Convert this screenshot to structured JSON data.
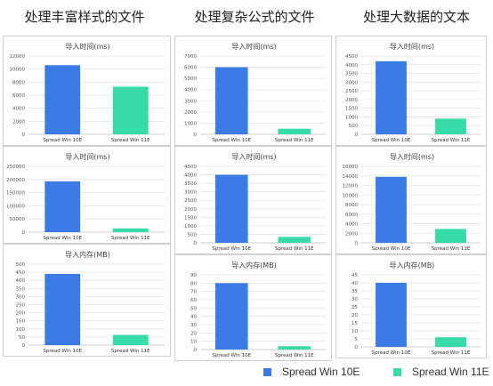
{
  "column_titles": [
    "处理丰富样式的文件",
    "处理复杂公式的文件",
    "处理大数据的文本"
  ],
  "legend": {
    "items": [
      {
        "label": "Spread Win 10E",
        "color": "#3b7be6"
      },
      {
        "label": "Spread Win 11E",
        "color": "#36dba8"
      }
    ]
  },
  "chart_data": [
    {
      "type": "bar",
      "title": "导入时间(ms)",
      "categories": [
        "Spread Win 10E",
        "Spread Win 11E"
      ],
      "values": [
        10600,
        7300
      ],
      "ylim": [
        0,
        12000
      ],
      "ticks": [
        0,
        2000,
        4000,
        6000,
        8000,
        10000,
        12000
      ],
      "grid": true,
      "group": "处理丰富样式的文件"
    },
    {
      "type": "bar",
      "title": "导入时间(ms)",
      "categories": [
        "Spread Win 10E",
        "Spread Win 11E"
      ],
      "values": [
        193000,
        14000
      ],
      "ylim": [
        0,
        250000
      ],
      "ticks": [
        0,
        50000,
        100000,
        150000,
        200000,
        250000
      ],
      "grid": true,
      "group": "处理丰富样式的文件"
    },
    {
      "type": "bar",
      "title": "导入内存(MB)",
      "categories": [
        "Spread Win 10E",
        "Spread Win 11E"
      ],
      "values": [
        440,
        63
      ],
      "ylim": [
        0,
        500
      ],
      "ticks": [
        0,
        50,
        100,
        150,
        200,
        250,
        300,
        350,
        400,
        450,
        500
      ],
      "grid": true,
      "group": "处理丰富样式的文件"
    },
    {
      "type": "bar",
      "title": "导入时间(ms)",
      "categories": [
        "Spread Win 10E",
        "Spread Win 11E"
      ],
      "values": [
        6000,
        500
      ],
      "ylim": [
        0,
        7000
      ],
      "ticks": [
        0,
        1000,
        2000,
        3000,
        4000,
        5000,
        6000,
        7000
      ],
      "grid": true,
      "group": "处理复杂公式的文件"
    },
    {
      "type": "bar",
      "title": "导入时间(ms)",
      "categories": [
        "Spread Win 10E",
        "Spread Win 11E"
      ],
      "values": [
        4000,
        350
      ],
      "ylim": [
        0,
        4500
      ],
      "ticks": [
        0,
        500,
        1000,
        1500,
        2000,
        2500,
        3000,
        3500,
        4000,
        4500
      ],
      "grid": true,
      "group": "处理复杂公式的文件"
    },
    {
      "type": "bar",
      "title": "导入内存(MB)",
      "categories": [
        "Spread Win 10E",
        "Spread Win 11E"
      ],
      "values": [
        80,
        4
      ],
      "ylim": [
        0,
        90
      ],
      "ticks": [
        0,
        10,
        20,
        30,
        40,
        50,
        60,
        70,
        80,
        90
      ],
      "grid": true,
      "group": "处理复杂公式的文件"
    },
    {
      "type": "bar",
      "title": "导入时间(ms)",
      "categories": [
        "Spread Win 10E",
        "Spread Win 11E"
      ],
      "values": [
        4200,
        900
      ],
      "ylim": [
        0,
        4500
      ],
      "ticks": [
        0,
        500,
        1000,
        1500,
        2000,
        2500,
        3000,
        3500,
        4000,
        4500
      ],
      "grid": true,
      "group": "处理大数据的文本"
    },
    {
      "type": "bar",
      "title": "导入时间(ms)",
      "categories": [
        "Spread Win 10E",
        "Spread Win 11E"
      ],
      "values": [
        13800,
        2900
      ],
      "ylim": [
        0,
        16000
      ],
      "ticks": [
        0,
        2000,
        4000,
        6000,
        8000,
        10000,
        12000,
        14000,
        16000
      ],
      "grid": true,
      "group": "处理大数据的文本"
    },
    {
      "type": "bar",
      "title": "导入内存(MB)",
      "categories": [
        "Spread Win 10E",
        "Spread Win 11E"
      ],
      "values": [
        40,
        6
      ],
      "ylim": [
        0,
        45
      ],
      "ticks": [
        0,
        5,
        10,
        15,
        20,
        25,
        30,
        35,
        40,
        45
      ],
      "grid": true,
      "group": "处理大数据的文本"
    }
  ]
}
